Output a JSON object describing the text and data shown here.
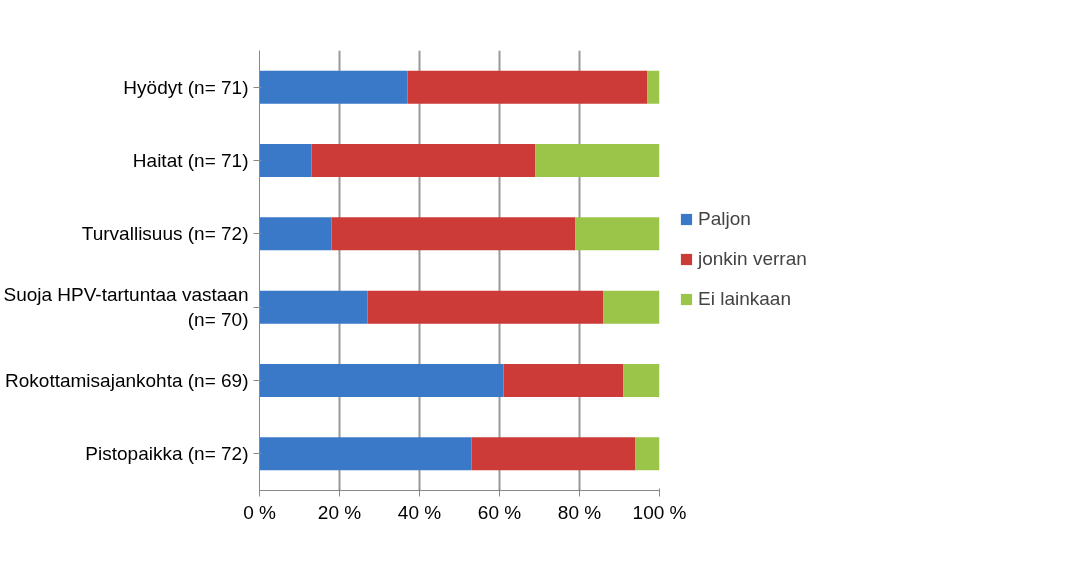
{
  "chart_data": {
    "type": "bar",
    "orientation": "horizontal",
    "stacked": true,
    "categories": [
      "Hyödyt (n= 71)",
      "Haitat (n= 71)",
      "Turvallisuus (n= 72)",
      "Suoja HPV-tartuntaa vastaan (n= 70)",
      "Rokottamisajankohta (n= 69)",
      "Pistopaikka (n= 72)"
    ],
    "series": [
      {
        "name": "Paljon",
        "color": "#3a78c8",
        "values": [
          37,
          13,
          18,
          27,
          61,
          53
        ]
      },
      {
        "name": "jonkin verran",
        "color": "#cc3b37",
        "values": [
          60,
          56,
          61,
          59,
          30,
          41
        ]
      },
      {
        "name": "Ei lainkaan",
        "color": "#9bc548",
        "values": [
          3,
          31,
          21,
          14,
          9,
          6
        ]
      }
    ],
    "xlim": [
      0,
      100
    ],
    "xticks": [
      {
        "value": 0,
        "label": "0 %"
      },
      {
        "value": 20,
        "label": "20 %"
      },
      {
        "value": 40,
        "label": "40 %"
      },
      {
        "value": 60,
        "label": "60 %"
      },
      {
        "value": 80,
        "label": "80 %"
      },
      {
        "value": 100,
        "label": "100 %"
      }
    ],
    "grid": "x",
    "legend": "right"
  }
}
